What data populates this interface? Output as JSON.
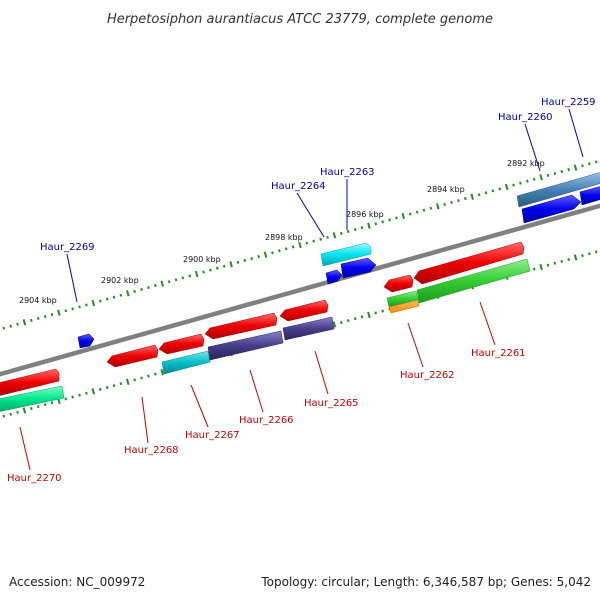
{
  "title": "Herpetosiphon aurantiacus ATCC 23779, complete genome",
  "footer": {
    "accession": "Accession: NC_009972",
    "info": "Topology: circular; Length: 6,346,587 bp; Genes: 5,042"
  },
  "colors": {
    "backbone": "#808080",
    "tick": "#2a8a2a",
    "forward_label": "#0000aa",
    "reverse_label": "#cc0000"
  },
  "kbp_labels": [
    "2904 kbp",
    "2902 kbp",
    "2900 kbp",
    "2898 kbp",
    "2896 kbp",
    "2894 kbp",
    "2892 kbp"
  ],
  "genes": {
    "forward": [
      {
        "name": "Haur_2269",
        "color": "#0000ee"
      },
      {
        "name": "Haur_2264",
        "color": "#0000ee"
      },
      {
        "name": "Haur_2263",
        "color": "#00e5ee"
      },
      {
        "name": "Haur_2260",
        "color": "#0000ee"
      },
      {
        "name": "Haur_2259",
        "color": "#4682b4"
      }
    ],
    "reverse": [
      {
        "name": "Haur_2270",
        "color": "#00e890"
      },
      {
        "name": "Haur_2268",
        "color": "#ee0000"
      },
      {
        "name": "Haur_2267",
        "color": "#00c8c8"
      },
      {
        "name": "Haur_2266",
        "color": "#483d8b"
      },
      {
        "name": "Haur_2265",
        "color": "#483d8b"
      },
      {
        "name": "Haur_2262",
        "color": "#32cd32"
      },
      {
        "name": "Haur_2261",
        "color": "#32cd32"
      }
    ]
  }
}
